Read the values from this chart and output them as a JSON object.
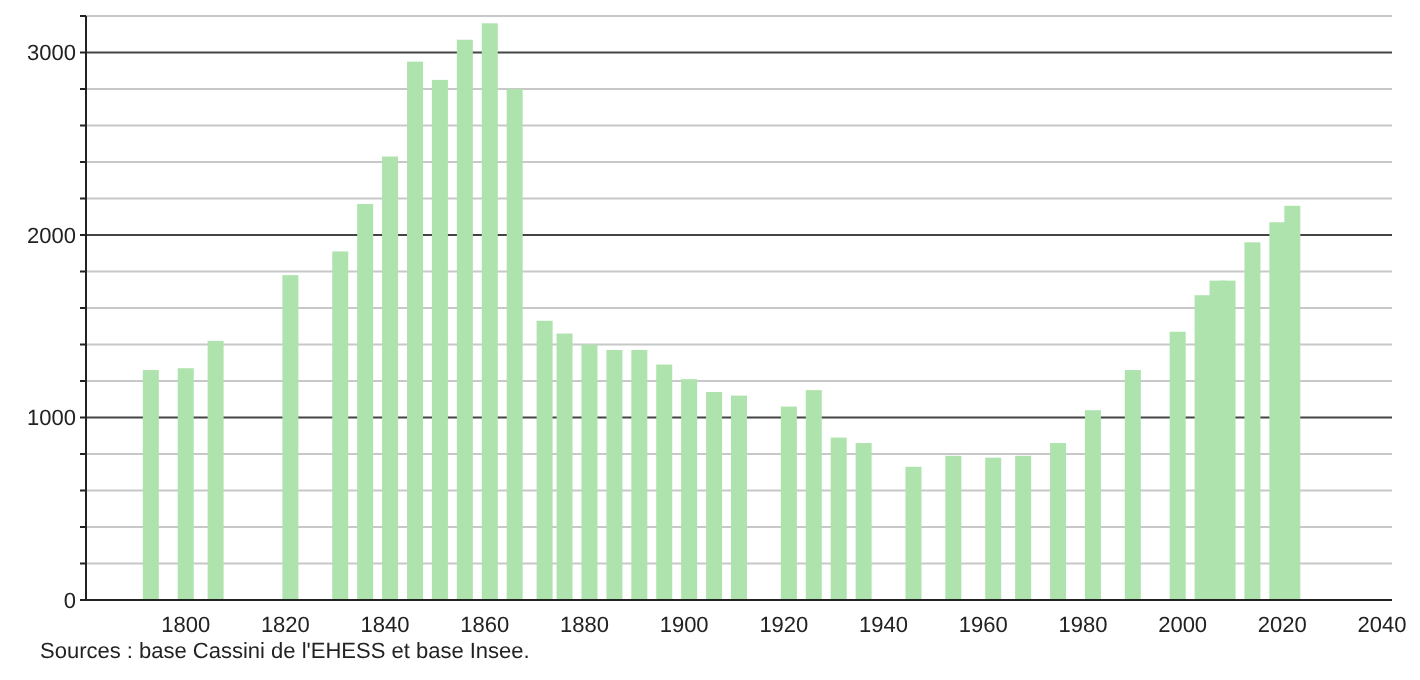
{
  "chart_data": {
    "type": "bar",
    "x": [
      1793,
      1800,
      1806,
      1821,
      1831,
      1836,
      1841,
      1846,
      1851,
      1856,
      1861,
      1866,
      1872,
      1876,
      1881,
      1886,
      1891,
      1896,
      1901,
      1906,
      1911,
      1921,
      1926,
      1931,
      1936,
      1946,
      1954,
      1962,
      1968,
      1975,
      1982,
      1990,
      1999,
      2004,
      2007,
      2009,
      2014,
      2019,
      2022
    ],
    "values": [
      1260,
      1270,
      1420,
      1780,
      1910,
      2170,
      2430,
      2950,
      2850,
      3070,
      3160,
      2800,
      1530,
      1460,
      1400,
      1370,
      1370,
      1290,
      1210,
      1140,
      1120,
      1060,
      1150,
      890,
      860,
      730,
      790,
      780,
      790,
      860,
      1040,
      1260,
      1470,
      1670,
      1750,
      1750,
      1960,
      2070,
      2160
    ],
    "color": "#aee3ae",
    "xlim": [
      1780,
      2042
    ],
    "xticks": [
      1800,
      1820,
      1840,
      1860,
      1880,
      1900,
      1920,
      1940,
      1960,
      1980,
      2000,
      2020,
      2040
    ],
    "ylim": [
      0,
      3200
    ],
    "yticks": [
      0,
      {
        "value": 200,
        "label": null
      },
      {
        "value": 400,
        "label": null
      },
      {
        "value": 600,
        "label": null
      },
      {
        "value": 800,
        "label": null
      },
      1000,
      {
        "value": 1200,
        "label": null
      },
      {
        "value": 1400,
        "label": null
      },
      {
        "value": 1600,
        "label": null
      },
      {
        "value": 1800,
        "label": null
      },
      2000,
      {
        "value": 2200,
        "label": null
      },
      {
        "value": 2400,
        "label": null
      },
      {
        "value": 2600,
        "label": null
      },
      {
        "value": 2800,
        "label": null
      },
      3000,
      {
        "value": 3200,
        "label": null
      }
    ],
    "grid": "y",
    "annotations": [
      "Sources : base Cassini de l'EHESS et base Insee."
    ]
  }
}
